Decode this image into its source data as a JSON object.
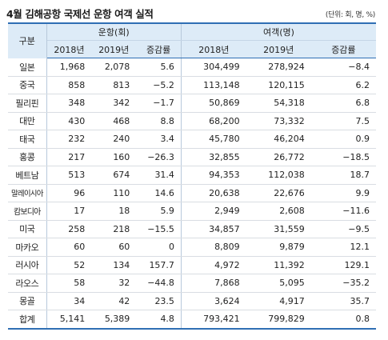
{
  "title": "4월 김해공항 국제선 운항 여객 실적",
  "unit_note": "(단위: 회, 명, %)",
  "table": {
    "corner_label": "구분",
    "group_flights": "운항(회)",
    "group_passengers": "여객(명)",
    "sub_headers": [
      "2018년",
      "2019년",
      "증감률",
      "2018년",
      "2019년",
      "증감률"
    ],
    "rows": [
      {
        "country": "일본",
        "f2018": "1,968",
        "f2019": "2,078",
        "frate": "5.6",
        "p2018": "304,499",
        "p2019": "278,924",
        "prate": "−8.4"
      },
      {
        "country": "중국",
        "f2018": "858",
        "f2019": "813",
        "frate": "−5.2",
        "p2018": "113,148",
        "p2019": "120,115",
        "prate": "6.2"
      },
      {
        "country": "필리핀",
        "f2018": "348",
        "f2019": "342",
        "frate": "−1.7",
        "p2018": "50,869",
        "p2019": "54,318",
        "prate": "6.8"
      },
      {
        "country": "대만",
        "f2018": "430",
        "f2019": "468",
        "frate": "8.8",
        "p2018": "68,200",
        "p2019": "73,332",
        "prate": "7.5"
      },
      {
        "country": "태국",
        "f2018": "232",
        "f2019": "240",
        "frate": "3.4",
        "p2018": "45,780",
        "p2019": "46,204",
        "prate": "0.9"
      },
      {
        "country": "홍콩",
        "f2018": "217",
        "f2019": "160",
        "frate": "−26.3",
        "p2018": "32,855",
        "p2019": "26,772",
        "prate": "−18.5"
      },
      {
        "country": "베트남",
        "f2018": "513",
        "f2019": "674",
        "frate": "31.4",
        "p2018": "94,353",
        "p2019": "112,038",
        "prate": "18.7"
      },
      {
        "country": "말레이시아",
        "f2018": "96",
        "f2019": "110",
        "frate": "14.6",
        "p2018": "20,638",
        "p2019": "22,676",
        "prate": "9.9"
      },
      {
        "country": "캄보디아",
        "f2018": "17",
        "f2019": "18",
        "frate": "5.9",
        "p2018": "2,949",
        "p2019": "2,608",
        "prate": "−11.6"
      },
      {
        "country": "미국",
        "f2018": "258",
        "f2019": "218",
        "frate": "−15.5",
        "p2018": "34,857",
        "p2019": "31,559",
        "prate": "−9.5"
      },
      {
        "country": "마카오",
        "f2018": "60",
        "f2019": "60",
        "frate": "0",
        "p2018": "8,809",
        "p2019": "9,879",
        "prate": "12.1"
      },
      {
        "country": "러시아",
        "f2018": "52",
        "f2019": "134",
        "frate": "157.7",
        "p2018": "4,972",
        "p2019": "11,392",
        "prate": "129.1"
      },
      {
        "country": "라오스",
        "f2018": "58",
        "f2019": "32",
        "frate": "−44.8",
        "p2018": "7,868",
        "p2019": "5,095",
        "prate": "−35.2"
      },
      {
        "country": "몽골",
        "f2018": "34",
        "f2019": "42",
        "frate": "23.5",
        "p2018": "3,624",
        "p2019": "4,917",
        "prate": "35.7"
      }
    ],
    "total": {
      "country": "합계",
      "f2018": "5,141",
      "f2019": "5,389",
      "frate": "4.8",
      "p2018": "793,421",
      "p2019": "799,829",
      "prate": "0.8"
    }
  }
}
